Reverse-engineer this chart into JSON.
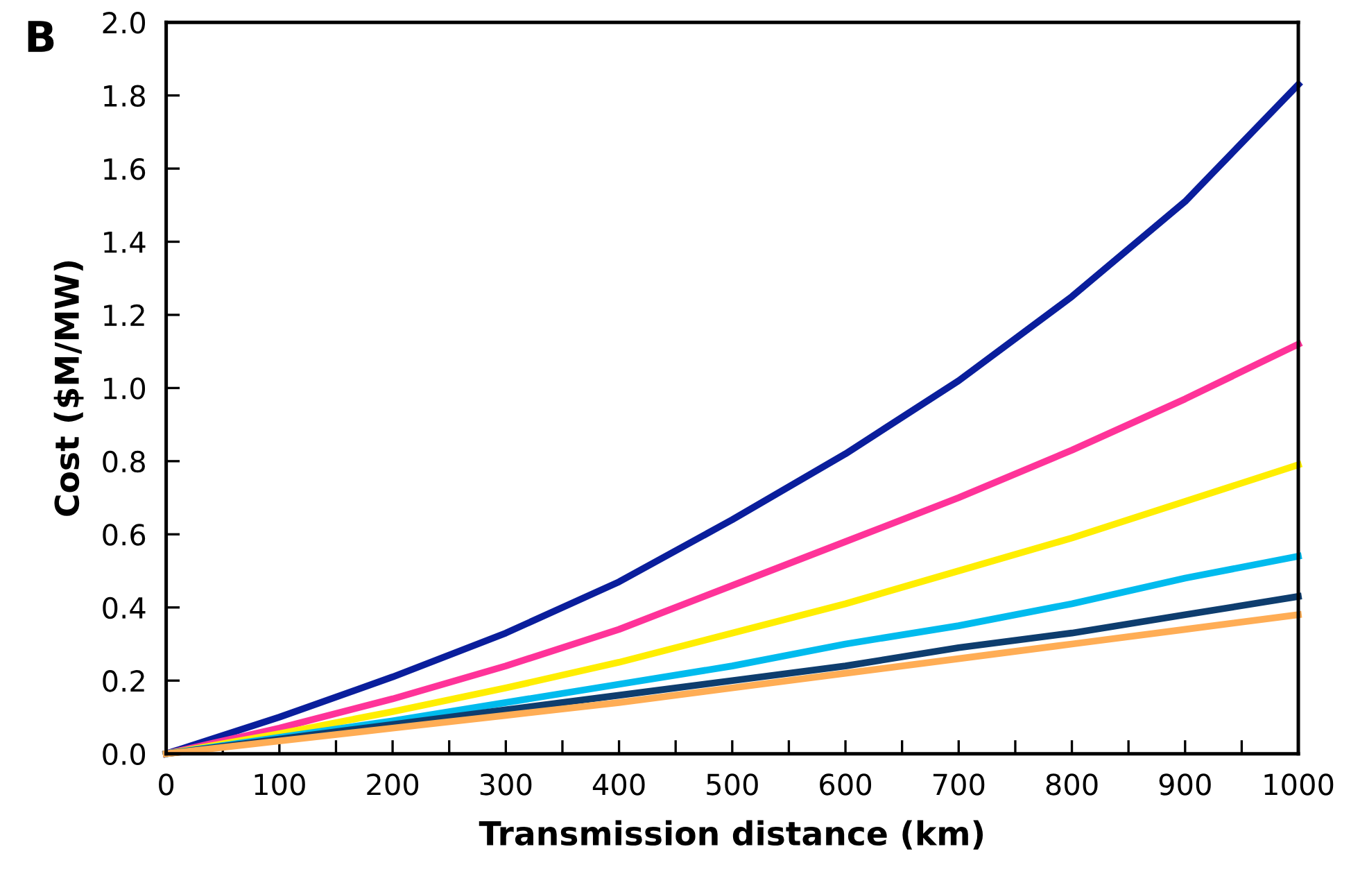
{
  "chart_data": {
    "type": "line",
    "xlabel": "Transmission distance (km)",
    "ylabel": "Cost ($M/MW)",
    "annotations": [
      "B"
    ],
    "x": [
      0,
      100,
      200,
      300,
      400,
      500,
      600,
      700,
      800,
      900,
      1000
    ],
    "series": [
      {
        "color": "#0a1e9c",
        "values": [
          0,
          0.1,
          0.21,
          0.33,
          0.47,
          0.64,
          0.82,
          1.02,
          1.25,
          1.51,
          1.83
        ]
      },
      {
        "color": "#ff3399",
        "values": [
          0,
          0.07,
          0.15,
          0.24,
          0.34,
          0.46,
          0.58,
          0.7,
          0.83,
          0.97,
          1.12
        ]
      },
      {
        "color": "#ffee00",
        "values": [
          0,
          0.055,
          0.115,
          0.18,
          0.25,
          0.33,
          0.41,
          0.5,
          0.59,
          0.69,
          0.79
        ]
      },
      {
        "color": "#00bbee",
        "values": [
          0,
          0.045,
          0.09,
          0.14,
          0.19,
          0.24,
          0.3,
          0.35,
          0.41,
          0.48,
          0.54
        ]
      },
      {
        "color": "#0e3d6e",
        "values": [
          0,
          0.04,
          0.08,
          0.12,
          0.16,
          0.2,
          0.24,
          0.29,
          0.33,
          0.38,
          0.43
        ]
      },
      {
        "color": "#ffad55",
        "values": [
          0,
          0.035,
          0.07,
          0.105,
          0.14,
          0.18,
          0.22,
          0.26,
          0.3,
          0.34,
          0.38
        ]
      }
    ],
    "xlim": [
      0,
      1000
    ],
    "xticks": [
      0,
      {
        "value": 50,
        "label": null
      },
      100,
      {
        "value": 150,
        "label": null
      },
      200,
      {
        "value": 250,
        "label": null
      },
      300,
      {
        "value": 350,
        "label": null
      },
      400,
      {
        "value": 450,
        "label": null
      },
      500,
      {
        "value": 550,
        "label": null
      },
      600,
      {
        "value": 650,
        "label": null
      },
      700,
      {
        "value": 750,
        "label": null
      },
      800,
      {
        "value": 850,
        "label": null
      },
      900,
      {
        "value": 950,
        "label": null
      },
      1000
    ],
    "ylim": [
      0,
      2.0
    ],
    "yticks": [
      {
        "value": 0,
        "label": "0.0"
      },
      {
        "value": 0.2,
        "label": "0.2"
      },
      {
        "value": 0.4,
        "label": "0.4"
      },
      {
        "value": 0.6,
        "label": "0.6"
      },
      {
        "value": 0.8,
        "label": "0.8"
      },
      {
        "value": 1.0,
        "label": "1.0"
      },
      {
        "value": 1.2,
        "label": "1.2"
      },
      {
        "value": 1.4,
        "label": "1.4"
      },
      {
        "value": 1.6,
        "label": "1.6"
      },
      {
        "value": 1.8,
        "label": "1.8"
      },
      {
        "value": 2.0,
        "label": "2.0"
      }
    ],
    "grid": false,
    "legend": false,
    "marker": "none",
    "line_style": "solid"
  }
}
